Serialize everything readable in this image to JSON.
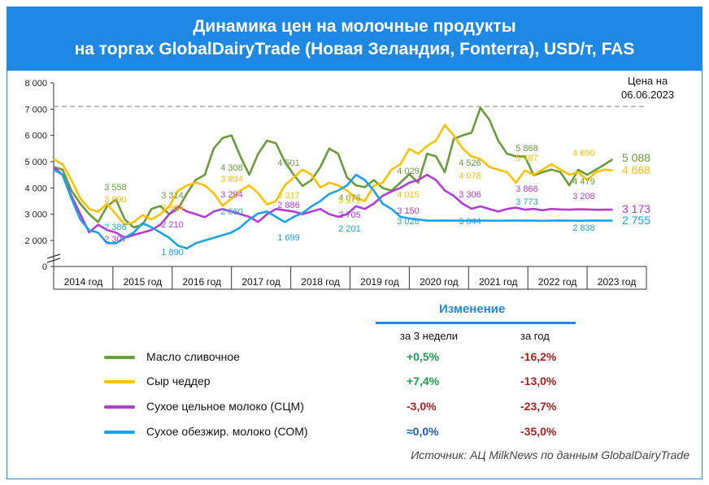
{
  "header": {
    "title_line1": "Динамика цен на молочные продукты",
    "title_line2": "на торгах GlobalDairyTrade (Новая Зеландия, Fonterra), USD/т, FAS"
  },
  "price_note": {
    "line1": "Цена на",
    "line2": "06.06.2023"
  },
  "colors": {
    "butter": "#6a9d3a",
    "cheddar": "#ffc000",
    "wmp": "#b23dd6",
    "smp": "#1aa3e6",
    "accent": "#1e88e5",
    "green_text": "#16a34a",
    "red_text": "#b01d1d",
    "blue_text": "#1a5fb4"
  },
  "chart_data": {
    "type": "line",
    "title": "Динамика цен на молочные продукты на торгах GlobalDairyTrade (Новая Зеландия, Fonterra), USD/т, FAS",
    "ylim": [
      0,
      8000
    ],
    "y_ticks": [
      "0",
      "2 000",
      "3 000",
      "4 000",
      "5 000",
      "6 000",
      "7 000",
      "8 000"
    ],
    "x_categories": [
      "2014 год",
      "2015 год",
      "2016 год",
      "2017 год",
      "2018 год",
      "2019 год",
      "2020 год",
      "2021 год",
      "2022 год",
      "2023 год"
    ],
    "reference_line": 7100,
    "series": [
      {
        "name": "Масло сливочное",
        "key": "butter",
        "x": [
          2014.0,
          2014.15,
          2014.3,
          2014.45,
          2014.6,
          2014.75,
          2014.9,
          2015.05,
          2015.2,
          2015.35,
          2015.5,
          2015.65,
          2015.8,
          2015.95,
          2016.1,
          2016.25,
          2016.4,
          2016.55,
          2016.7,
          2016.85,
          2017.0,
          2017.15,
          2017.3,
          2017.45,
          2017.6,
          2017.75,
          2017.9,
          2018.05,
          2018.2,
          2018.35,
          2018.5,
          2018.65,
          2018.8,
          2018.95,
          2019.1,
          2019.25,
          2019.4,
          2019.55,
          2019.7,
          2019.85,
          2020.0,
          2020.15,
          2020.3,
          2020.45,
          2020.6,
          2020.75,
          2020.9,
          2021.05,
          2021.2,
          2021.35,
          2021.5,
          2021.65,
          2021.8,
          2021.95,
          2022.1,
          2022.25,
          2022.4,
          2022.55,
          2022.7,
          2022.85,
          2023.0,
          2023.15,
          2023.3,
          2023.43
        ],
        "values": [
          4800,
          4700,
          3900,
          3400,
          3000,
          2700,
          3300,
          3558,
          2800,
          2500,
          2600,
          3200,
          3314,
          3000,
          3200,
          3800,
          4308,
          4500,
          5500,
          5900,
          6000,
          5200,
          4501,
          5300,
          5800,
          5700,
          5000,
          4500,
          4076,
          4300,
          4800,
          5500,
          5300,
          4400,
          4100,
          4029,
          4300,
          4000,
          3900,
          4200,
          4526,
          4200,
          5300,
          5200,
          4600,
          5868,
          6000,
          6100,
          7050,
          6600,
          5800,
          5300,
          5200,
          5200,
          4479,
          4600,
          4700,
          4600,
          4100,
          4690,
          4500,
          4700,
          4900,
          5088
        ]
      },
      {
        "name": "Сыр чеддер",
        "key": "cheddar",
        "x": [
          2014.0,
          2014.15,
          2014.3,
          2014.45,
          2014.6,
          2014.75,
          2014.9,
          2015.05,
          2015.2,
          2015.35,
          2015.5,
          2015.65,
          2015.8,
          2015.95,
          2016.1,
          2016.25,
          2016.4,
          2016.55,
          2016.7,
          2016.85,
          2017.0,
          2017.15,
          2017.3,
          2017.45,
          2017.6,
          2017.75,
          2017.9,
          2018.05,
          2018.2,
          2018.35,
          2018.5,
          2018.65,
          2018.8,
          2018.95,
          2019.1,
          2019.25,
          2019.4,
          2019.55,
          2019.7,
          2019.85,
          2020.0,
          2020.15,
          2020.3,
          2020.45,
          2020.6,
          2020.75,
          2020.9,
          2021.05,
          2021.2,
          2021.35,
          2021.5,
          2021.65,
          2021.8,
          2021.95,
          2022.1,
          2022.25,
          2022.4,
          2022.55,
          2022.7,
          2022.85,
          2023.0,
          2023.15,
          2023.3,
          2023.43
        ],
        "values": [
          5100,
          4900,
          4300,
          3600,
          3200,
          3090,
          3400,
          3000,
          2600,
          2700,
          2964,
          2800,
          3000,
          3300,
          3894,
          4100,
          4200,
          4100,
          3800,
          3317,
          3600,
          3900,
          4100,
          3800,
          3371,
          3500,
          4100,
          4400,
          4700,
          4500,
          4015,
          4200,
          4100,
          3900,
          3600,
          3500,
          4078,
          4200,
          4700,
          4900,
          5487,
          5300,
          5600,
          5800,
          6400,
          6000,
          5500,
          5200,
          5100,
          4800,
          4690,
          4600,
          4200,
          4668,
          4500,
          4700,
          4900,
          4700,
          4500,
          4600,
          4300,
          4600,
          4700,
          4668
        ]
      },
      {
        "name": "Сухое цельное молоко (СЦМ)",
        "key": "wmp",
        "x": [
          2014.0,
          2014.15,
          2014.3,
          2014.45,
          2014.6,
          2014.75,
          2014.9,
          2015.05,
          2015.2,
          2015.35,
          2015.5,
          2015.65,
          2015.8,
          2015.95,
          2016.1,
          2016.25,
          2016.4,
          2016.55,
          2016.7,
          2016.85,
          2017.0,
          2017.15,
          2017.3,
          2017.45,
          2017.6,
          2017.75,
          2017.9,
          2018.05,
          2018.2,
          2018.35,
          2018.5,
          2018.65,
          2018.8,
          2018.95,
          2019.1,
          2019.25,
          2019.4,
          2019.55,
          2019.7,
          2019.85,
          2020.0,
          2020.15,
          2020.3,
          2020.45,
          2020.6,
          2020.75,
          2020.9,
          2021.05,
          2021.2,
          2021.35,
          2021.5,
          2021.65,
          2021.8,
          2021.95,
          2022.1,
          2022.25,
          2022.4,
          2022.55,
          2022.7,
          2022.85,
          2023.0,
          2023.15,
          2023.3,
          2023.43
        ],
        "values": [
          4800,
          4500,
          3700,
          3000,
          2307,
          2600,
          2400,
          2300,
          2100,
          2210,
          2300,
          2400,
          2600,
          3000,
          3294,
          3100,
          3000,
          2886,
          3100,
          3200,
          3100,
          3000,
          2900,
          2705,
          3000,
          3200,
          3150,
          3100,
          3000,
          3100,
          3200,
          3000,
          2900,
          3000,
          3306,
          3200,
          3400,
          3700,
          3866,
          4000,
          4200,
          4300,
          4500,
          4300,
          3900,
          3700,
          3400,
          3208,
          3300,
          3200,
          3100,
          3200,
          3250,
          3173,
          3200,
          3150,
          3200,
          3180,
          3173,
          3190,
          3180,
          3170,
          3173,
          3173
        ]
      },
      {
        "name": "Сухое обезжир. молоко (СОМ)",
        "key": "smp",
        "x": [
          2014.0,
          2014.15,
          2014.3,
          2014.45,
          2014.6,
          2014.75,
          2014.9,
          2015.05,
          2015.2,
          2015.35,
          2015.5,
          2015.65,
          2015.8,
          2015.95,
          2016.1,
          2016.25,
          2016.4,
          2016.55,
          2016.7,
          2016.85,
          2017.0,
          2017.15,
          2017.3,
          2017.45,
          2017.6,
          2017.75,
          2017.9,
          2018.05,
          2018.2,
          2018.35,
          2018.5,
          2018.65,
          2018.8,
          2018.95,
          2019.1,
          2019.25,
          2019.4,
          2019.55,
          2019.7,
          2019.85,
          2020.0,
          2020.15,
          2020.3,
          2020.45,
          2020.6,
          2020.75,
          2020.9,
          2021.05,
          2021.2,
          2021.35,
          2021.5,
          2021.65,
          2021.8,
          2021.95,
          2022.1,
          2022.25,
          2022.4,
          2022.55,
          2022.7,
          2022.85,
          2023.0,
          2023.15,
          2023.3,
          2023.43
        ],
        "values": [
          4700,
          4500,
          3600,
          2800,
          2386,
          2300,
          1900,
          1890,
          2100,
          2300,
          2660,
          2500,
          2300,
          2100,
          1800,
          1699,
          1900,
          2000,
          2100,
          2201,
          2300,
          2500,
          2800,
          3026,
          3100,
          2900,
          2700,
          2900,
          3044,
          3300,
          3500,
          3773,
          3900,
          4100,
          4500,
          4300,
          3900,
          3400,
          3200,
          2900,
          2838,
          2800,
          2755,
          2755,
          2760,
          2755,
          2750,
          2760,
          2755,
          2755,
          2750,
          2755,
          2760,
          2755,
          2755,
          2750,
          2755,
          2760,
          2755,
          2750,
          2755,
          2760,
          2755,
          2755
        ]
      }
    ],
    "data_labels": [
      {
        "series": "butter",
        "text": "3 558"
      },
      {
        "series": "butter",
        "text": "3 314"
      },
      {
        "series": "butter",
        "text": "4 308"
      },
      {
        "series": "butter",
        "text": "4 501"
      },
      {
        "series": "butter",
        "text": "4 076"
      },
      {
        "series": "butter",
        "text": "4 029"
      },
      {
        "series": "butter",
        "text": "4 526"
      },
      {
        "series": "butter",
        "text": "5 868"
      },
      {
        "series": "butter",
        "text": "4 479"
      },
      {
        "series": "cheddar",
        "text": "3 090"
      },
      {
        "series": "cheddar",
        "text": "2 964"
      },
      {
        "series": "cheddar",
        "text": "3 894"
      },
      {
        "series": "cheddar",
        "text": "3 317"
      },
      {
        "series": "cheddar",
        "text": "3 371"
      },
      {
        "series": "cheddar",
        "text": "4 015"
      },
      {
        "series": "cheddar",
        "text": "4 078"
      },
      {
        "series": "cheddar",
        "text": "5 487"
      },
      {
        "series": "cheddar",
        "text": "4 690"
      },
      {
        "series": "wmp",
        "text": "2 307"
      },
      {
        "series": "wmp",
        "text": "2 210"
      },
      {
        "series": "wmp",
        "text": "3 294"
      },
      {
        "series": "wmp",
        "text": "2 886"
      },
      {
        "series": "wmp",
        "text": "2 705"
      },
      {
        "series": "wmp",
        "text": "3 150"
      },
      {
        "series": "wmp",
        "text": "3 306"
      },
      {
        "series": "wmp",
        "text": "3 866"
      },
      {
        "series": "wmp",
        "text": "3 208"
      },
      {
        "series": "smp",
        "text": "2 386"
      },
      {
        "series": "smp",
        "text": "1 890"
      },
      {
        "series": "smp",
        "text": "2 660"
      },
      {
        "series": "smp",
        "text": "1 699"
      },
      {
        "series": "smp",
        "text": "2 201"
      },
      {
        "series": "smp",
        "text": "3 026"
      },
      {
        "series": "smp",
        "text": "3 044"
      },
      {
        "series": "smp",
        "text": "3 773"
      },
      {
        "series": "smp",
        "text": "2 838"
      }
    ],
    "end_values": [
      {
        "series": "butter",
        "text": "5 088"
      },
      {
        "series": "cheddar",
        "text": "4 668"
      },
      {
        "series": "wmp",
        "text": "3 173"
      },
      {
        "series": "smp",
        "text": "2 755"
      }
    ]
  },
  "changes": {
    "heading": "Изменение",
    "col_3w": "за 3 недели",
    "col_year": "за год",
    "rows": [
      {
        "label": "Масло сливочное",
        "key": "butter",
        "w3": "+0,5%",
        "year": "-16,2%"
      },
      {
        "label": "Сыр чеддер",
        "key": "cheddar",
        "w3": "+7,4%",
        "year": "-13,0%"
      },
      {
        "label": "Сухое цельное молоко (СЦМ)",
        "key": "wmp",
        "w3": "-3,0%",
        "year": "-23,7%"
      },
      {
        "label": "Сухое обезжир. молоко (СОМ)",
        "key": "smp",
        "w3": "≈0,0%",
        "year": "-35,0%"
      }
    ]
  },
  "source": "Источник: АЦ MilkNews по данным GlobalDairyTrade"
}
